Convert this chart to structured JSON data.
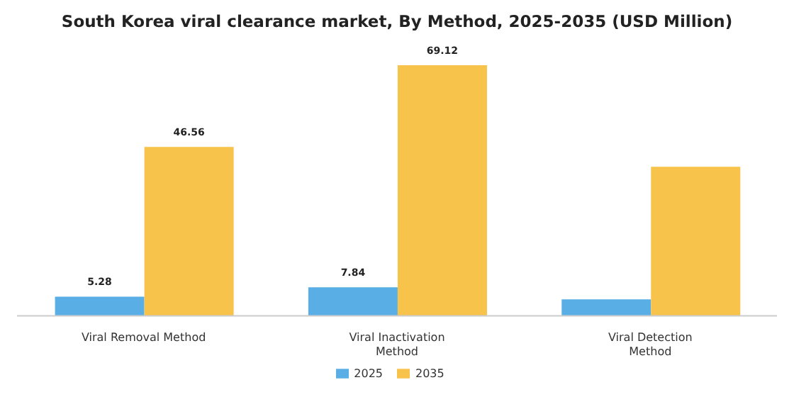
{
  "chart_data": {
    "type": "bar",
    "title": "South Korea viral clearance market, By Method, 2025-2035 (USD Million)",
    "categories": [
      "Viral Removal Method",
      "Viral Inactivation Method",
      "Viral Detection Method"
    ],
    "series": [
      {
        "name": "2025",
        "color": "#5aaee6",
        "values": [
          5.28,
          7.84,
          4.5
        ],
        "value_labels": [
          "5.28",
          "7.84",
          null
        ]
      },
      {
        "name": "2035",
        "color": "#f7c34a",
        "values": [
          46.56,
          69.12,
          41.1
        ],
        "value_labels": [
          "46.56",
          "69.12",
          null
        ]
      }
    ],
    "legend": "bottom"
  }
}
